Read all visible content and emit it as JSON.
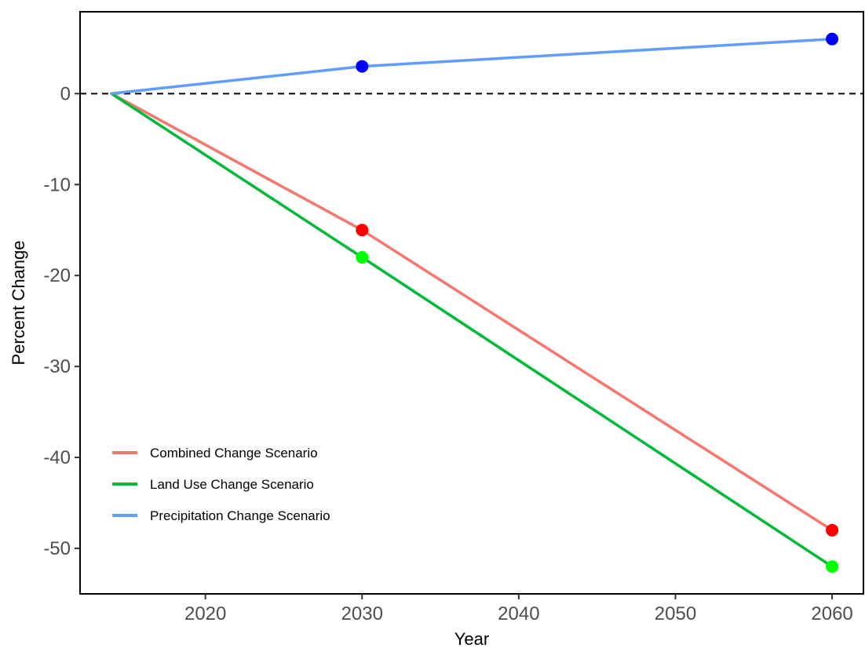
{
  "chart_data": {
    "type": "line",
    "title": "",
    "xlabel": "Year",
    "ylabel": "Percent Change",
    "xlim": [
      2012,
      2062
    ],
    "ylim": [
      -55,
      9
    ],
    "x_ticks": [
      2020,
      2030,
      2040,
      2050,
      2060
    ],
    "y_ticks": [
      0,
      -10,
      -20,
      -30,
      -40,
      -50
    ],
    "reference_line": {
      "y": 0,
      "style": "dashed",
      "color": "#000000"
    },
    "legend_position": "bottom-left",
    "grid": false,
    "series": [
      {
        "name": "Combined Change Scenario",
        "color": "#f8766d",
        "point_color": "#ff0000",
        "x": [
          2014,
          2030,
          2060
        ],
        "y": [
          0,
          -15,
          -48
        ],
        "points_x": [
          2030,
          2060
        ],
        "points_y": [
          -15,
          -48
        ]
      },
      {
        "name": "Land Use Change Scenario",
        "color": "#00ba38",
        "point_color": "#00ff00",
        "x": [
          2014,
          2030,
          2060
        ],
        "y": [
          0,
          -18,
          -52
        ],
        "points_x": [
          2030,
          2060
        ],
        "points_y": [
          -18,
          -52
        ]
      },
      {
        "name": "Precipitation Change Scenario",
        "color": "#619cff",
        "point_color": "#0000ff",
        "x": [
          2014,
          2030,
          2060
        ],
        "y": [
          0,
          3,
          6
        ],
        "points_x": [
          2030,
          2060
        ],
        "points_y": [
          3,
          6
        ]
      }
    ]
  }
}
